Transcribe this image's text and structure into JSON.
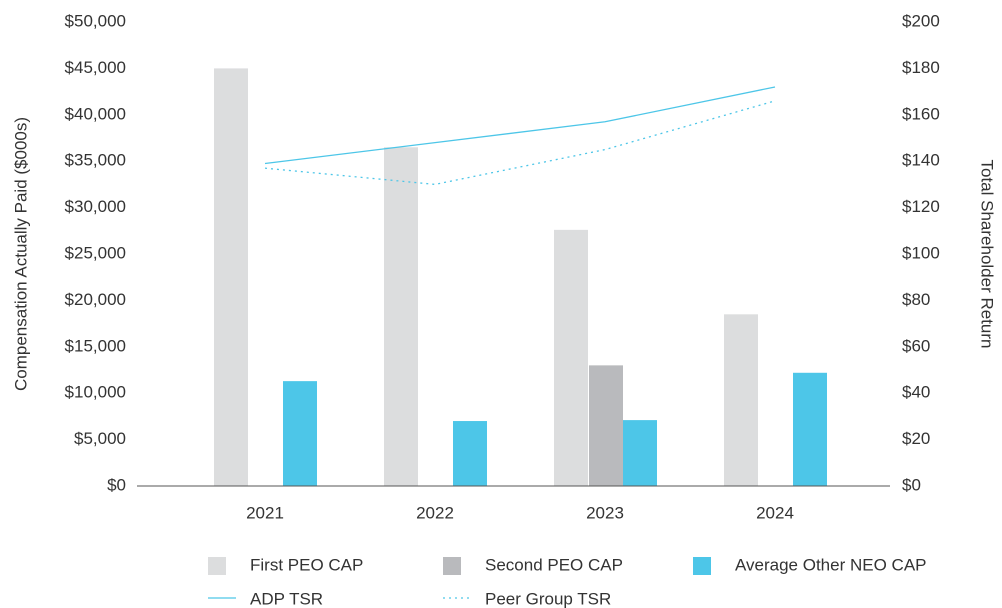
{
  "chart_data": {
    "type": "bar",
    "categories": [
      "2021",
      "2022",
      "2023",
      "2024"
    ],
    "series": [
      {
        "name": "First PEO CAP",
        "color": "#dcddde",
        "values": [
          45000,
          36500,
          27600,
          18500
        ]
      },
      {
        "name": "Second PEO CAP",
        "color": "#b9babd",
        "values": [
          null,
          null,
          13000,
          null
        ]
      },
      {
        "name": "Average Other NEO CAP",
        "color": "#4dc6e8",
        "values": [
          11300,
          7000,
          7100,
          12200
        ]
      },
      {
        "name": "ADP TSR",
        "color": "#4dc6e8",
        "type": "line",
        "axis": "y2",
        "values": [
          139,
          148,
          157,
          172
        ]
      },
      {
        "name": "Peer Group TSR",
        "color": "#4dc6e8",
        "type": "line",
        "dashed": true,
        "axis": "y2",
        "values": [
          137,
          130,
          145,
          166
        ]
      }
    ],
    "ylabel": "Compensation Actually Paid ($000s)",
    "y2label": "Total Shareholder Return",
    "ylim": [
      0,
      50000
    ],
    "yticks": [
      {
        "value": 0,
        "label": "$0"
      },
      {
        "value": 5000,
        "label": "$5,000"
      },
      {
        "value": 10000,
        "label": "$10,000"
      },
      {
        "value": 15000,
        "label": "$15,000"
      },
      {
        "value": 20000,
        "label": "$20,000"
      },
      {
        "value": 25000,
        "label": "$25,000"
      },
      {
        "value": 30000,
        "label": "$30,000"
      },
      {
        "value": 35000,
        "label": "$35,000"
      },
      {
        "value": 40000,
        "label": "$40,000"
      },
      {
        "value": 45000,
        "label": "$45,000"
      },
      {
        "value": 50000,
        "label": "$50,000"
      }
    ],
    "y2lim": [
      0,
      200
    ],
    "y2ticks": [
      {
        "value": 0,
        "label": "$0"
      },
      {
        "value": 20,
        "label": "$20"
      },
      {
        "value": 40,
        "label": "$40"
      },
      {
        "value": 60,
        "label": "$60"
      },
      {
        "value": 80,
        "label": "$80"
      },
      {
        "value": 100,
        "label": "$100"
      },
      {
        "value": 120,
        "label": "$120"
      },
      {
        "value": 140,
        "label": "$140"
      },
      {
        "value": 160,
        "label": "$160"
      },
      {
        "value": 180,
        "label": "$180"
      },
      {
        "value": 200,
        "label": "$200"
      }
    ],
    "legend": "bottom",
    "grid": false
  }
}
